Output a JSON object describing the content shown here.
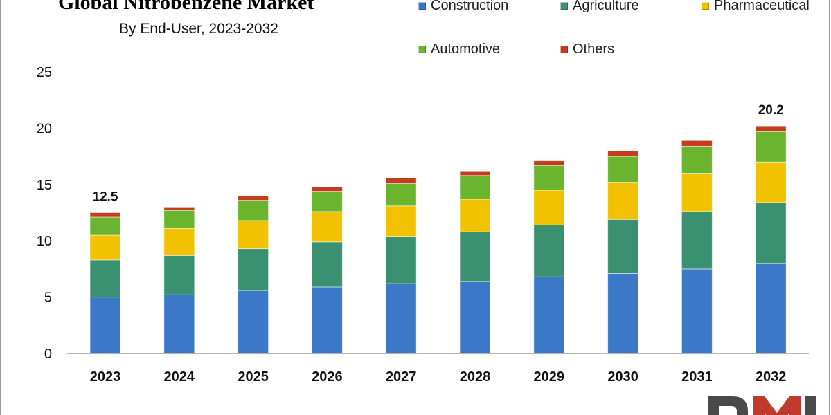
{
  "chart_data": {
    "type": "bar",
    "stacked": true,
    "title": "Global Nitrobenzene Market",
    "subtitle": "By End-User, 2023-2032",
    "categories": [
      "2023",
      "2024",
      "2025",
      "2026",
      "2027",
      "2028",
      "2029",
      "2030",
      "2031",
      "2032"
    ],
    "series": [
      {
        "name": "Construction",
        "color": "#3c78c8",
        "values": [
          5.0,
          5.2,
          5.6,
          5.9,
          6.2,
          6.4,
          6.8,
          7.1,
          7.5,
          8.0
        ]
      },
      {
        "name": "Agriculture",
        "color": "#3a9172",
        "values": [
          3.3,
          3.5,
          3.7,
          4.0,
          4.2,
          4.4,
          4.6,
          4.8,
          5.1,
          5.4
        ]
      },
      {
        "name": "Pharmaceutical",
        "color": "#f2c200",
        "values": [
          2.2,
          2.4,
          2.5,
          2.7,
          2.7,
          2.9,
          3.1,
          3.3,
          3.4,
          3.6
        ]
      },
      {
        "name": "Automotive",
        "color": "#6ab42e",
        "values": [
          1.6,
          1.6,
          1.8,
          1.8,
          2.0,
          2.1,
          2.2,
          2.3,
          2.4,
          2.7
        ]
      },
      {
        "name": "Others",
        "color": "#c43c1c",
        "values": [
          0.4,
          0.3,
          0.4,
          0.4,
          0.5,
          0.4,
          0.4,
          0.5,
          0.5,
          0.5
        ]
      }
    ],
    "totals_labels": [
      {
        "category": "2023",
        "text": "12.5"
      },
      {
        "category": "2032",
        "text": "20.2"
      }
    ],
    "yticks": [
      "0",
      "5",
      "10",
      "15",
      "20",
      "25"
    ],
    "ylim": [
      0,
      25
    ],
    "xlabel": "",
    "ylabel": "",
    "grid": false,
    "legend_position": "top-right"
  },
  "logo": {
    "text": "DMR"
  }
}
